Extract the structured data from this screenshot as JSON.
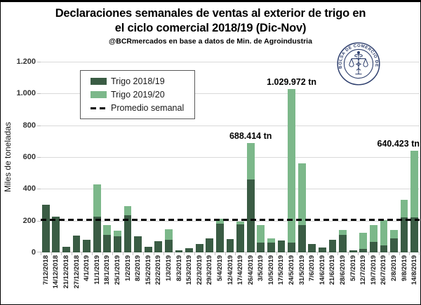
{
  "header": {
    "title_line1": "Declaraciones semanales de ventas al exterior de trigo en",
    "title_line2": "el ciclo comercial 2018/19  (Dic-Nov)",
    "subtitle": "@BCRmercados en base a datos de Min. de Agroindustria"
  },
  "logo": {
    "text": "BOLSA DE COMERCIO DE ROSARIO",
    "color": "#2d3e6d"
  },
  "chart_data": {
    "type": "bar",
    "stacked": true,
    "title": "Declaraciones semanales de ventas al exterior de trigo en el ciclo comercial 2018/19 (Dic-Nov)",
    "subtitle": "@BCRmercados en base a datos de Min. de Agroindustria",
    "ylabel": "Miles de toneladas",
    "xlabel": "",
    "ylim": [
      0,
      1200
    ],
    "ytick_step": 200,
    "ytick_labels": [
      "0",
      "200",
      "400",
      "600",
      "800",
      "1.000",
      "1.200"
    ],
    "grid": true,
    "legend_position": "top-left-inside",
    "categories": [
      "7/12/2018",
      "14/12/2018",
      "21/12/2018",
      "27/12/2018",
      "4/1/2019",
      "11/1/2019",
      "18/1/2019",
      "25/1/2019",
      "1/2/2019",
      "8/2/2019",
      "15/2/2019",
      "22/2/2019",
      "1/3/2019",
      "8/3/2019",
      "15/3/2019",
      "22/3/2019",
      "29/3/2019",
      "5/4/2019",
      "12/4/2019",
      "17/4/2019",
      "26/4/2019",
      "3/5/2019",
      "10/5/2019",
      "17/5/2019",
      "24/5/2019",
      "31/5/2019",
      "7/6/2019",
      "14/6/2019",
      "21/6/2019",
      "28/6/2019",
      "5/7/2019",
      "12/7/2019",
      "19/7/2019",
      "26/7/2019",
      "2/8/2019",
      "9/8/2019",
      "14/8/2019"
    ],
    "series": [
      {
        "name": "Trigo 2018/19",
        "color": "#3a5c44",
        "values": [
          300,
          225,
          35,
          105,
          80,
          225,
          110,
          100,
          235,
          100,
          35,
          70,
          80,
          15,
          25,
          55,
          90,
          180,
          85,
          175,
          460,
          60,
          60,
          75,
          60,
          170,
          55,
          30,
          80,
          110,
          15,
          20,
          65,
          45,
          90,
          220,
          220
        ]
      },
      {
        "name": "Trigo 2019/20",
        "color": "#7cb88a",
        "values": [
          0,
          0,
          0,
          0,
          0,
          205,
          60,
          35,
          55,
          0,
          0,
          0,
          65,
          0,
          0,
          0,
          0,
          30,
          0,
          20,
          228.4,
          110,
          30,
          0,
          970,
          390,
          0,
          0,
          0,
          30,
          0,
          105,
          105,
          160,
          53,
          110,
          420.4
        ]
      }
    ],
    "average_line": {
      "name": "Promedio semanal",
      "value": 203,
      "color": "#000000",
      "style": "dashed"
    },
    "annotations": [
      {
        "text": "688.414 tn",
        "category": "26/4/2019",
        "category_index": 20,
        "align": "center"
      },
      {
        "text": "1.029.972 tn",
        "category": "24/5/2019",
        "category_index": 24,
        "align": "center"
      },
      {
        "text": "640.423 tn",
        "category": "14/8/2019",
        "category_index": 36,
        "align": "right"
      }
    ]
  }
}
